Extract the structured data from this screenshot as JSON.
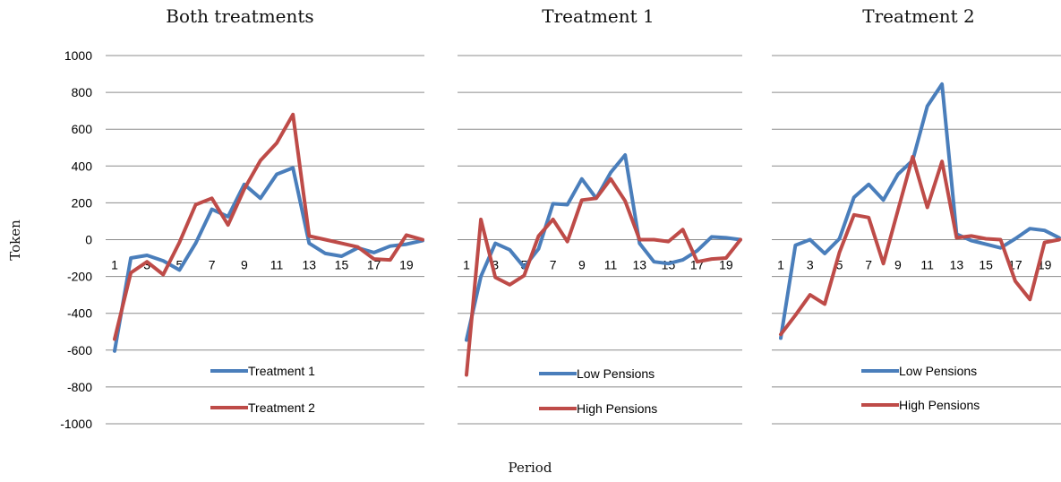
{
  "figure": {
    "ylabel": "Token",
    "xlabel": "Period"
  },
  "colors": {
    "series_a": "#4a7ebb",
    "series_b": "#be4b48",
    "grid": "#8c8c8c"
  },
  "chart_data": [
    {
      "type": "line",
      "title": "Both treatments",
      "ylim": [
        -1000,
        1000
      ],
      "yticks": [
        1000,
        800,
        600,
        400,
        200,
        0,
        -200,
        -400,
        -600,
        -800,
        -1000
      ],
      "ytick_labels": [
        "1000",
        "800",
        "600",
        "400",
        "200",
        "0",
        "-200",
        "-400",
        "-600",
        "-800",
        "-1000"
      ],
      "x": [
        1,
        2,
        3,
        4,
        5,
        6,
        7,
        8,
        9,
        10,
        11,
        12,
        13,
        14,
        15,
        16,
        17,
        18,
        19,
        20
      ],
      "xtick_labels": [
        "1",
        "3",
        "5",
        "7",
        "9",
        "11",
        "13",
        "15",
        "17",
        "19"
      ],
      "grid": true,
      "legend_position": "bottom",
      "series": [
        {
          "name": "Treatment 1",
          "color": "#4a7ebb",
          "values": [
            -605,
            -100,
            -85,
            -115,
            -165,
            -20,
            165,
            125,
            300,
            225,
            355,
            390,
            -20,
            -75,
            -90,
            -45,
            -70,
            -35,
            -25,
            -5
          ]
        },
        {
          "name": "Treatment 2",
          "color": "#be4b48",
          "values": [
            -540,
            -180,
            -120,
            -190,
            -15,
            190,
            225,
            80,
            275,
            430,
            525,
            680,
            20,
            0,
            -20,
            -40,
            -105,
            -110,
            25,
            0
          ]
        }
      ]
    },
    {
      "type": "line",
      "title": "Treatment 1",
      "ylim": [
        -1000,
        1000
      ],
      "x": [
        1,
        2,
        3,
        4,
        5,
        6,
        7,
        8,
        9,
        10,
        11,
        12,
        13,
        14,
        15,
        16,
        17,
        18,
        19,
        20
      ],
      "xtick_labels": [
        "1",
        "3",
        "5",
        "7",
        "9",
        "11",
        "13",
        "15",
        "17",
        "19"
      ],
      "grid": true,
      "legend_position": "bottom",
      "series": [
        {
          "name": "Low Pensions",
          "color": "#4a7ebb",
          "values": [
            -545,
            -200,
            -20,
            -55,
            -150,
            -50,
            195,
            190,
            330,
            225,
            365,
            460,
            -20,
            -120,
            -130,
            -110,
            -60,
            15,
            10,
            0
          ]
        },
        {
          "name": "High Pensions",
          "color": "#be4b48",
          "values": [
            -735,
            110,
            -205,
            -245,
            -195,
            20,
            110,
            -10,
            215,
            225,
            330,
            210,
            0,
            0,
            -10,
            55,
            -120,
            -105,
            -100,
            0
          ]
        }
      ]
    },
    {
      "type": "line",
      "title": "Treatment 2",
      "ylim": [
        -1000,
        1000
      ],
      "x": [
        1,
        2,
        3,
        4,
        5,
        6,
        7,
        8,
        9,
        10,
        11,
        12,
        13,
        14,
        15,
        16,
        17,
        18,
        19,
        20
      ],
      "xtick_labels": [
        "1",
        "3",
        "5",
        "7",
        "9",
        "11",
        "13",
        "15",
        "17",
        "19"
      ],
      "grid": true,
      "legend_position": "bottom",
      "series": [
        {
          "name": "Low Pensions",
          "color": "#4a7ebb",
          "values": [
            -535,
            -30,
            0,
            -75,
            5,
            230,
            300,
            215,
            355,
            430,
            725,
            845,
            30,
            -5,
            -25,
            -45,
            5,
            60,
            50,
            10
          ]
        },
        {
          "name": "High Pensions",
          "color": "#be4b48",
          "values": [
            -515,
            -410,
            -300,
            -350,
            -70,
            135,
            120,
            -130,
            160,
            450,
            175,
            425,
            10,
            20,
            5,
            0,
            -225,
            -325,
            -15,
            0
          ]
        }
      ]
    }
  ]
}
